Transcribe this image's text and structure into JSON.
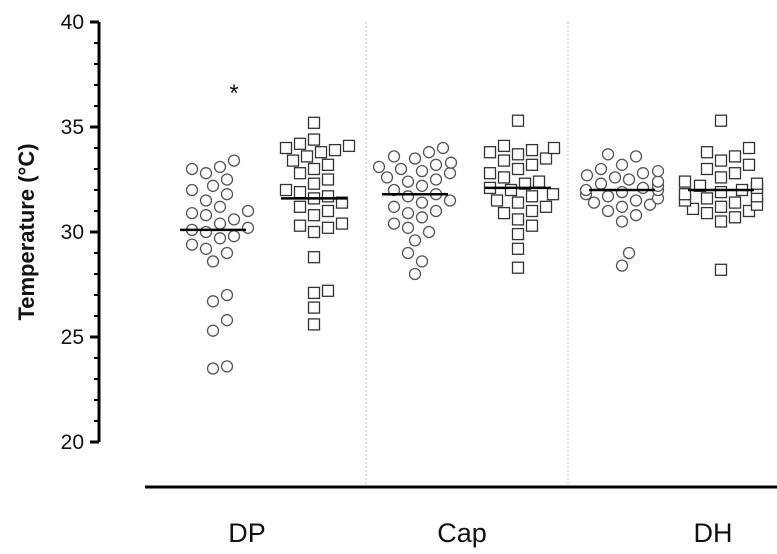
{
  "chart_data": {
    "type": "scatter",
    "ylabel": "Temperature (°C)",
    "ylim": [
      20,
      40
    ],
    "yticks": [
      {
        "value": 20,
        "label": "20"
      },
      {
        "value": 25,
        "label": "25"
      },
      {
        "value": 30,
        "label": "30"
      },
      {
        "value": 35,
        "label": "35"
      },
      {
        "value": 40,
        "label": "40"
      }
    ],
    "groups": [
      "DP",
      "Cap",
      "DH"
    ],
    "series": [
      {
        "group": "DP",
        "marker": "circle",
        "mean": 30.1,
        "values": [
          23.5,
          23.6,
          25.3,
          25.8,
          26.7,
          27.0,
          28.6,
          29.0,
          29.2,
          29.4,
          29.7,
          29.8,
          30.0,
          30.1,
          30.2,
          30.4,
          30.6,
          30.8,
          30.9,
          31.0,
          31.2,
          31.5,
          31.8,
          32.0,
          32.2,
          32.5,
          32.8,
          33.0,
          33.1,
          33.4
        ]
      },
      {
        "group": "DP",
        "marker": "square",
        "mean": 31.6,
        "values": [
          25.6,
          26.4,
          27.1,
          27.2,
          28.8,
          30.0,
          30.2,
          30.3,
          30.4,
          30.8,
          31.0,
          31.2,
          31.4,
          31.6,
          31.7,
          31.9,
          32.0,
          32.3,
          32.5,
          32.8,
          33.0,
          33.2,
          33.4,
          33.6,
          33.8,
          33.9,
          34.0,
          34.1,
          34.2,
          34.4,
          35.2
        ]
      },
      {
        "group": "Cap",
        "marker": "circle",
        "mean": 31.8,
        "values": [
          28.0,
          28.6,
          29.0,
          29.6,
          30.0,
          30.2,
          30.4,
          30.7,
          30.9,
          31.0,
          31.2,
          31.4,
          31.5,
          31.7,
          31.8,
          32.0,
          32.2,
          32.4,
          32.5,
          32.6,
          32.8,
          32.9,
          33.0,
          33.1,
          33.2,
          33.3,
          33.5,
          33.6,
          33.8,
          34.0
        ]
      },
      {
        "group": "Cap",
        "marker": "square",
        "mean": 32.1,
        "values": [
          28.3,
          29.2,
          29.9,
          30.3,
          30.6,
          30.9,
          31.0,
          31.2,
          31.4,
          31.5,
          31.7,
          31.8,
          32.0,
          32.1,
          32.3,
          32.4,
          32.6,
          32.8,
          33.0,
          33.2,
          33.4,
          33.5,
          33.7,
          33.8,
          33.9,
          34.0,
          34.1,
          35.3
        ]
      },
      {
        "group": "DH",
        "marker": "circle",
        "mean": 32.0,
        "values": [
          28.4,
          29.0,
          30.5,
          30.8,
          31.0,
          31.2,
          31.3,
          31.4,
          31.5,
          31.6,
          31.7,
          31.8,
          31.9,
          32.0,
          32.0,
          32.1,
          32.2,
          32.3,
          32.4,
          32.5,
          32.6,
          32.7,
          32.8,
          32.9,
          33.0,
          33.2,
          33.6,
          33.7
        ]
      },
      {
        "group": "DH",
        "marker": "square",
        "mean": 32.0,
        "values": [
          28.2,
          30.5,
          30.7,
          30.9,
          31.0,
          31.1,
          31.2,
          31.3,
          31.4,
          31.5,
          31.6,
          31.7,
          31.8,
          31.9,
          32.0,
          32.1,
          32.2,
          32.3,
          32.4,
          32.6,
          32.8,
          33.0,
          33.2,
          33.4,
          33.6,
          33.8,
          34.0,
          35.3
        ]
      }
    ],
    "annotations": [
      {
        "text": "*",
        "group": "DP",
        "y": 36.8
      }
    ]
  }
}
